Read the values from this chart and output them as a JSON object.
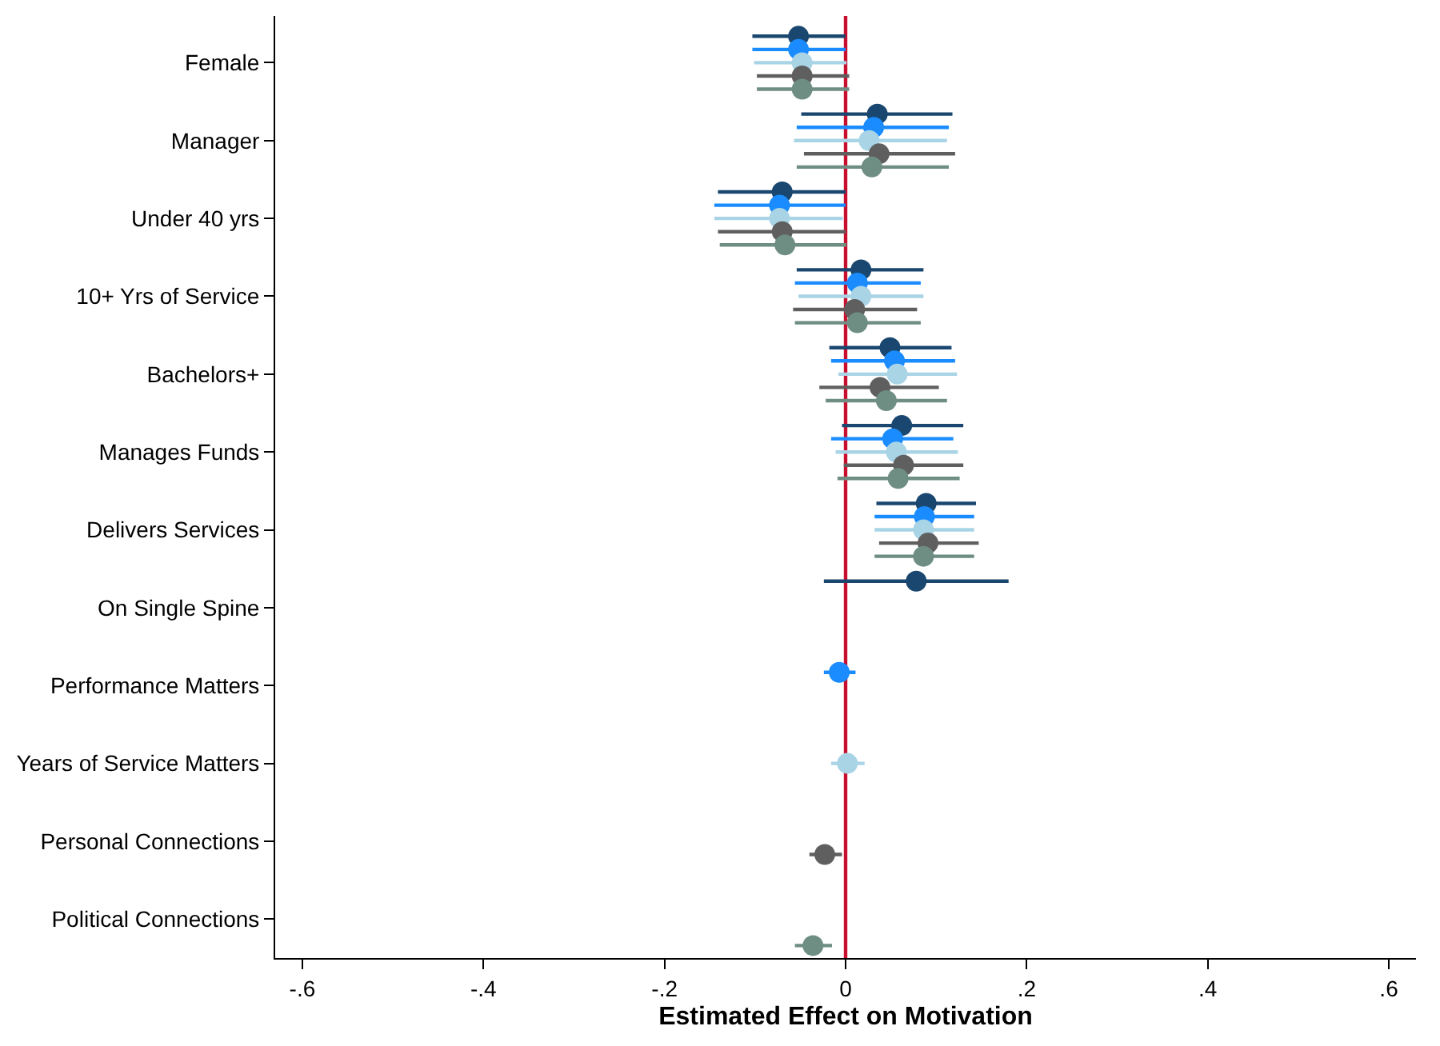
{
  "chart_data": {
    "type": "scatter",
    "orientation": "horizontal",
    "xlabel": "Estimated Effect on Motivation",
    "categories": [
      "Female",
      "Manager",
      "Under 40 yrs",
      "10+ Yrs of Service",
      "Bachelors+",
      "Manages Funds",
      "Delivers Services",
      "On Single Spine",
      "Performance Matters",
      "Years of Service Matters",
      "Personal Connections",
      "Political Connections"
    ],
    "series": [
      {
        "color": "#1a476f",
        "values": [
          -0.052,
          0.035,
          -0.07,
          0.017,
          0.049,
          0.062,
          0.089,
          0.078,
          null,
          null,
          null,
          null
        ],
        "errors": [
          [
            -0.103,
            0.0
          ],
          [
            -0.049,
            0.118
          ],
          [
            -0.141,
            0.0
          ],
          [
            -0.054,
            0.086
          ],
          [
            -0.018,
            0.117
          ],
          [
            -0.004,
            0.13
          ],
          [
            0.034,
            0.144
          ],
          [
            -0.024,
            0.18
          ],
          null,
          null,
          null,
          null
        ]
      },
      {
        "color": "#1a8cff",
        "values": [
          -0.052,
          0.031,
          -0.073,
          0.013,
          0.054,
          0.052,
          0.087,
          null,
          -0.007,
          null,
          null,
          null
        ],
        "errors": [
          [
            -0.103,
            0.0
          ],
          [
            -0.054,
            0.114
          ],
          [
            -0.145,
            0.0
          ],
          [
            -0.056,
            0.083
          ],
          [
            -0.016,
            0.121
          ],
          [
            -0.016,
            0.119
          ],
          [
            0.032,
            0.142
          ],
          null,
          [
            -0.024,
            0.011
          ],
          null,
          null,
          null
        ]
      },
      {
        "color": "#a9d4e6",
        "values": [
          -0.048,
          0.026,
          -0.073,
          0.017,
          0.057,
          0.056,
          0.086,
          null,
          null,
          0.002,
          null,
          null
        ],
        "errors": [
          [
            -0.101,
            0.001
          ],
          [
            -0.057,
            0.112
          ],
          [
            -0.145,
            -0.003
          ],
          [
            -0.052,
            0.086
          ],
          [
            -0.008,
            0.123
          ],
          [
            -0.011,
            0.124
          ],
          [
            0.032,
            0.142
          ],
          null,
          null,
          [
            -0.016,
            0.021
          ],
          null,
          null
        ]
      },
      {
        "color": "#5f5f5f",
        "values": [
          -0.048,
          0.037,
          -0.07,
          0.01,
          0.038,
          0.064,
          0.091,
          null,
          null,
          null,
          -0.023,
          null
        ],
        "errors": [
          [
            -0.098,
            0.004
          ],
          [
            -0.046,
            0.121
          ],
          [
            -0.141,
            0.0
          ],
          [
            -0.058,
            0.079
          ],
          [
            -0.029,
            0.103
          ],
          [
            -0.002,
            0.13
          ],
          [
            0.037,
            0.147
          ],
          null,
          null,
          null,
          [
            -0.04,
            -0.004
          ],
          null
        ]
      },
      {
        "color": "#6e8e84",
        "values": [
          -0.048,
          0.029,
          -0.067,
          0.013,
          0.045,
          0.058,
          0.086,
          null,
          null,
          null,
          null,
          -0.036
        ],
        "errors": [
          [
            -0.098,
            0.004
          ],
          [
            -0.054,
            0.114
          ],
          [
            -0.139,
            0.001
          ],
          [
            -0.056,
            0.083
          ],
          [
            -0.022,
            0.112
          ],
          [
            -0.009,
            0.126
          ],
          [
            0.032,
            0.142
          ],
          null,
          null,
          null,
          null,
          [
            -0.056,
            -0.015
          ]
        ]
      }
    ],
    "marker": "circle",
    "xlim": [
      -0.63,
      0.63
    ],
    "xticks": [
      {
        "value": -0.6,
        "label": "-.6"
      },
      {
        "value": -0.4,
        "label": "-.4"
      },
      {
        "value": -0.2,
        "label": "-.2"
      },
      0,
      {
        "value": 0.2,
        "label": ".2"
      },
      {
        "value": 0.4,
        "label": ".4"
      },
      {
        "value": 0.6,
        "label": ".6"
      }
    ],
    "ref_lines": [
      {
        "axis": "x",
        "value": 0,
        "color": "#c8102e",
        "line_style": "solid"
      }
    ]
  }
}
